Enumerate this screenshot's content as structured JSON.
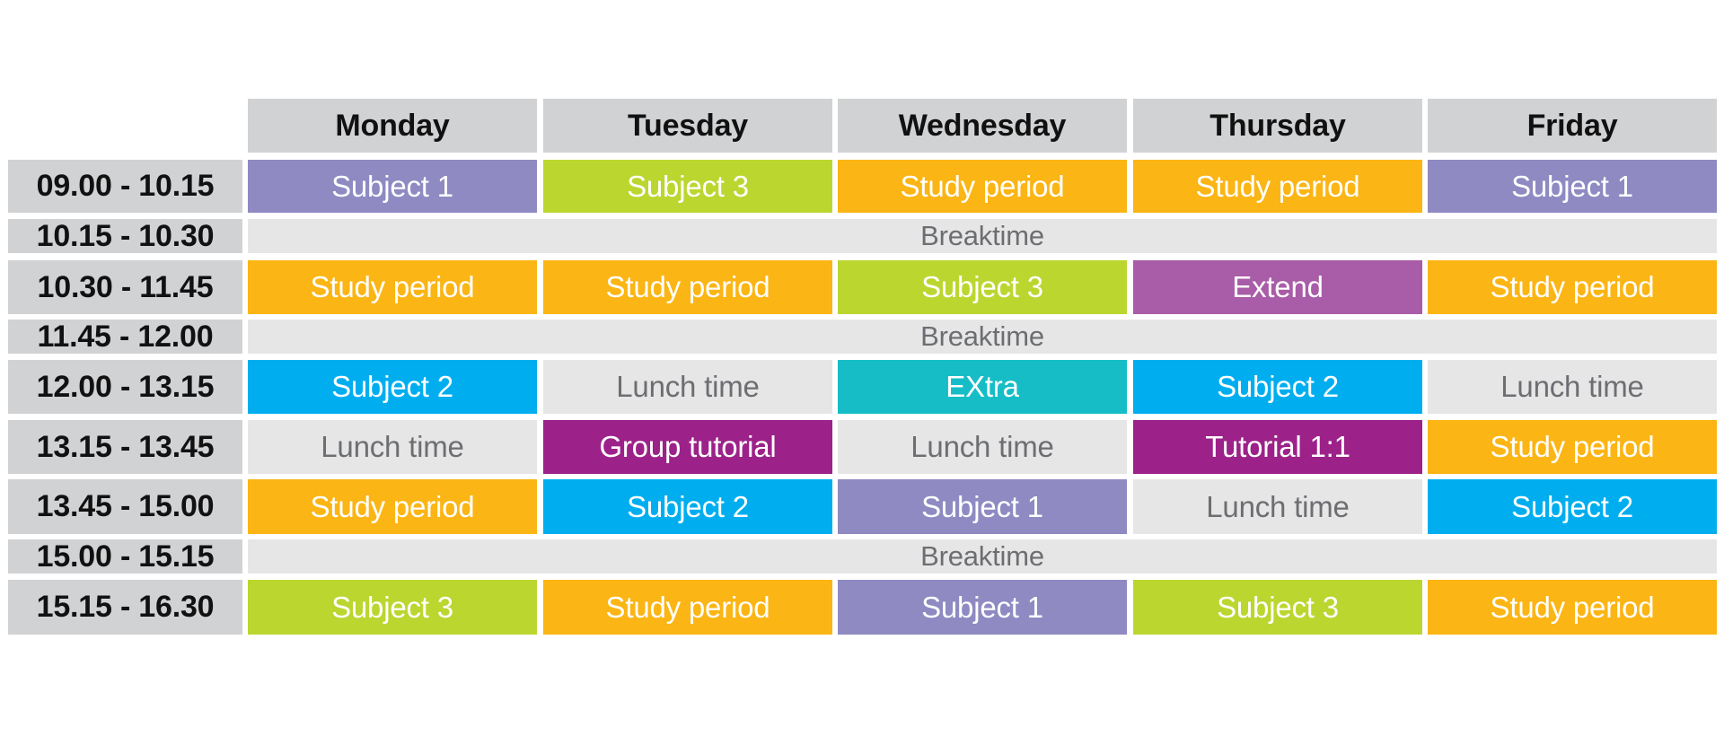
{
  "days": [
    "Monday",
    "Tuesday",
    "Wednesday",
    "Thursday",
    "Friday"
  ],
  "colors": {
    "header_bg": "#d1d2d4",
    "break_bg": "#e6e6e7",
    "muted_text": "#6d6e71",
    "subject_1": "#8f8ac2",
    "subject_2": "#00aeef",
    "subject_3": "#bcd630",
    "study_period": "#fbb514",
    "extend": "#a95ca7",
    "extra": "#16bdc7",
    "tutorial": "#9c2289",
    "lunch": "#e6e6e7"
  },
  "rows": [
    {
      "time": "09.00 - 10.15",
      "sessions": [
        {
          "label": "Subject 1",
          "kind": "subject_1"
        },
        {
          "label": "Subject 3",
          "kind": "subject_3"
        },
        {
          "label": "Study period",
          "kind": "study_period"
        },
        {
          "label": "Study period",
          "kind": "study_period"
        },
        {
          "label": "Subject 1",
          "kind": "subject_1"
        }
      ]
    },
    {
      "time": "10.15 - 10.30",
      "break_label": "Breaktime"
    },
    {
      "time": "10.30 - 11.45",
      "sessions": [
        {
          "label": "Study period",
          "kind": "study_period"
        },
        {
          "label": "Study period",
          "kind": "study_period"
        },
        {
          "label": "Subject 3",
          "kind": "subject_3"
        },
        {
          "label": "Extend",
          "kind": "extend"
        },
        {
          "label": "Study period",
          "kind": "study_period"
        }
      ]
    },
    {
      "time": "11.45 - 12.00",
      "break_label": "Breaktime"
    },
    {
      "time": "12.00 - 13.15",
      "sessions": [
        {
          "label": "Subject 2",
          "kind": "subject_2"
        },
        {
          "label": "Lunch time",
          "kind": "lunch"
        },
        {
          "label": "EXtra",
          "kind": "extra"
        },
        {
          "label": "Subject 2",
          "kind": "subject_2"
        },
        {
          "label": "Lunch time",
          "kind": "lunch"
        }
      ]
    },
    {
      "time": "13.15 - 13.45",
      "sessions": [
        {
          "label": "Lunch time",
          "kind": "lunch"
        },
        {
          "label": "Group tutorial",
          "kind": "tutorial"
        },
        {
          "label": "Lunch time",
          "kind": "lunch"
        },
        {
          "label": "Tutorial 1:1",
          "kind": "tutorial"
        },
        {
          "label": "Study period",
          "kind": "study_period"
        }
      ]
    },
    {
      "time": "13.45 - 15.00",
      "sessions": [
        {
          "label": "Study period",
          "kind": "study_period"
        },
        {
          "label": "Subject 2",
          "kind": "subject_2"
        },
        {
          "label": "Subject 1",
          "kind": "subject_1"
        },
        {
          "label": "Lunch time",
          "kind": "lunch"
        },
        {
          "label": "Subject 2",
          "kind": "subject_2"
        }
      ]
    },
    {
      "time": "15.00 - 15.15",
      "break_label": "Breaktime"
    },
    {
      "time": "15.15 - 16.30",
      "sessions": [
        {
          "label": "Subject 3",
          "kind": "subject_3"
        },
        {
          "label": "Study period",
          "kind": "study_period"
        },
        {
          "label": "Subject 1",
          "kind": "subject_1"
        },
        {
          "label": "Subject 3",
          "kind": "subject_3"
        },
        {
          "label": "Study period",
          "kind": "study_period"
        }
      ]
    }
  ]
}
